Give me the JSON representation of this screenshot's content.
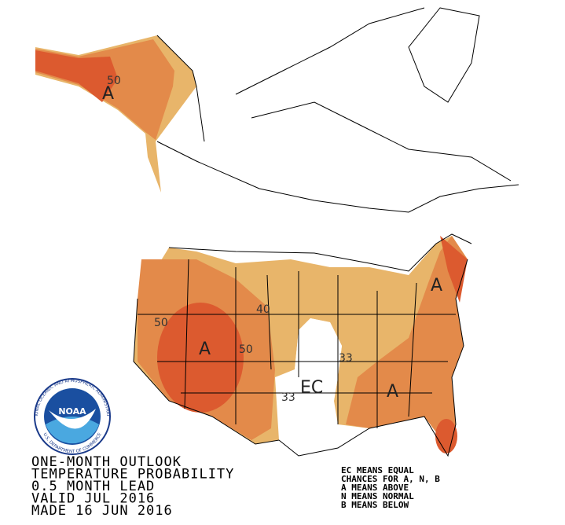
{
  "title_lines": [
    "ONE-MONTH OUTLOOK",
    "TEMPERATURE PROBABILITY",
    "0.5 MONTH LEAD",
    "VALID JUL 2016",
    "MADE 16 JUN 2016"
  ],
  "legend_lines": [
    "EC MEANS EQUAL",
    "CHANCES FOR A, N, B",
    "A MEANS ABOVE",
    "N MEANS NORMAL",
    "B MEANS BELOW"
  ],
  "map_labels": [
    "50",
    "A",
    "50",
    "A",
    "40",
    "50",
    "33",
    "EC",
    "33",
    "A",
    "A"
  ],
  "logo": {
    "name": "NOAA",
    "ring_top": "NATIONAL OCEANIC AND ATMOSPHERIC ADMINISTRATION",
    "ring_bottom": "U.S. DEPARTMENT OF COMMERCE"
  }
}
